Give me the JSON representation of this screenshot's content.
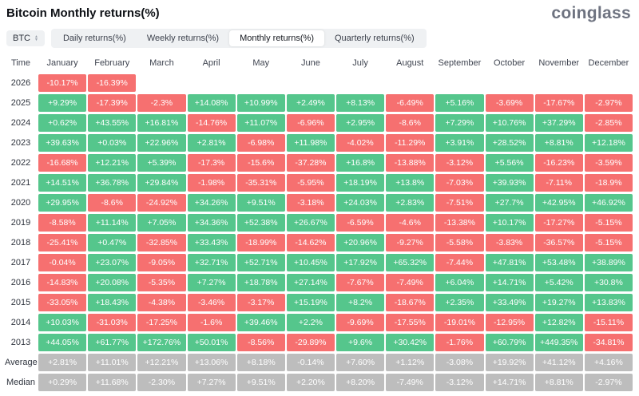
{
  "header": {
    "title": "Bitcoin Monthly returns(%)",
    "logo": "coinglass"
  },
  "controls": {
    "symbol_selector": {
      "label": "BTC"
    },
    "tabs": [
      {
        "label": "Daily returns(%)",
        "selected": false
      },
      {
        "label": "Weekly returns(%)",
        "selected": false
      },
      {
        "label": "Monthly returns(%)",
        "selected": true
      },
      {
        "label": "Quarterly returns(%)",
        "selected": false
      }
    ]
  },
  "chart_data": {
    "type": "heatmap",
    "title": "Bitcoin Monthly returns(%)",
    "row_header": "Time",
    "columns": [
      "January",
      "February",
      "March",
      "April",
      "May",
      "June",
      "July",
      "August",
      "September",
      "October",
      "November",
      "December"
    ],
    "colors": {
      "positive": "#55C68C",
      "negative": "#F67070",
      "summary": "#BDBDBD",
      "empty": "#FFFFFF"
    },
    "rows": [
      {
        "label": "2026",
        "kind": "year",
        "values": [
          "-10.17%",
          "-16.39%",
          "",
          "",
          "",
          "",
          "",
          "",
          "",
          "",
          "",
          ""
        ]
      },
      {
        "label": "2025",
        "kind": "year",
        "values": [
          "+9.29%",
          "-17.39%",
          "-2.3%",
          "+14.08%",
          "+10.99%",
          "+2.49%",
          "+8.13%",
          "-6.49%",
          "+5.16%",
          "-3.69%",
          "-17.67%",
          "-2.97%"
        ]
      },
      {
        "label": "2024",
        "kind": "year",
        "values": [
          "+0.62%",
          "+43.55%",
          "+16.81%",
          "-14.76%",
          "+11.07%",
          "-6.96%",
          "+2.95%",
          "-8.6%",
          "+7.29%",
          "+10.76%",
          "+37.29%",
          "-2.85%"
        ]
      },
      {
        "label": "2023",
        "kind": "year",
        "values": [
          "+39.63%",
          "+0.03%",
          "+22.96%",
          "+2.81%",
          "-6.98%",
          "+11.98%",
          "-4.02%",
          "-11.29%",
          "+3.91%",
          "+28.52%",
          "+8.81%",
          "+12.18%"
        ]
      },
      {
        "label": "2022",
        "kind": "year",
        "values": [
          "-16.68%",
          "+12.21%",
          "+5.39%",
          "-17.3%",
          "-15.6%",
          "-37.28%",
          "+16.8%",
          "-13.88%",
          "-3.12%",
          "+5.56%",
          "-16.23%",
          "-3.59%"
        ]
      },
      {
        "label": "2021",
        "kind": "year",
        "values": [
          "+14.51%",
          "+36.78%",
          "+29.84%",
          "-1.98%",
          "-35.31%",
          "-5.95%",
          "+18.19%",
          "+13.8%",
          "-7.03%",
          "+39.93%",
          "-7.11%",
          "-18.9%"
        ]
      },
      {
        "label": "2020",
        "kind": "year",
        "values": [
          "+29.95%",
          "-8.6%",
          "-24.92%",
          "+34.26%",
          "+9.51%",
          "-3.18%",
          "+24.03%",
          "+2.83%",
          "-7.51%",
          "+27.7%",
          "+42.95%",
          "+46.92%"
        ]
      },
      {
        "label": "2019",
        "kind": "year",
        "values": [
          "-8.58%",
          "+11.14%",
          "+7.05%",
          "+34.36%",
          "+52.38%",
          "+26.67%",
          "-6.59%",
          "-4.6%",
          "-13.38%",
          "+10.17%",
          "-17.27%",
          "-5.15%"
        ]
      },
      {
        "label": "2018",
        "kind": "year",
        "values": [
          "-25.41%",
          "+0.47%",
          "-32.85%",
          "+33.43%",
          "-18.99%",
          "-14.62%",
          "+20.96%",
          "-9.27%",
          "-5.58%",
          "-3.83%",
          "-36.57%",
          "-5.15%"
        ]
      },
      {
        "label": "2017",
        "kind": "year",
        "values": [
          "-0.04%",
          "+23.07%",
          "-9.05%",
          "+32.71%",
          "+52.71%",
          "+10.45%",
          "+17.92%",
          "+65.32%",
          "-7.44%",
          "+47.81%",
          "+53.48%",
          "+38.89%"
        ]
      },
      {
        "label": "2016",
        "kind": "year",
        "values": [
          "-14.83%",
          "+20.08%",
          "-5.35%",
          "+7.27%",
          "+18.78%",
          "+27.14%",
          "-7.67%",
          "-7.49%",
          "+6.04%",
          "+14.71%",
          "+5.42%",
          "+30.8%"
        ]
      },
      {
        "label": "2015",
        "kind": "year",
        "values": [
          "-33.05%",
          "+18.43%",
          "-4.38%",
          "-3.46%",
          "-3.17%",
          "+15.19%",
          "+8.2%",
          "-18.67%",
          "+2.35%",
          "+33.49%",
          "+19.27%",
          "+13.83%"
        ]
      },
      {
        "label": "2014",
        "kind": "year",
        "values": [
          "+10.03%",
          "-31.03%",
          "-17.25%",
          "-1.6%",
          "+39.46%",
          "+2.2%",
          "-9.69%",
          "-17.55%",
          "-19.01%",
          "-12.95%",
          "+12.82%",
          "-15.11%"
        ]
      },
      {
        "label": "2013",
        "kind": "year",
        "values": [
          "+44.05%",
          "+61.77%",
          "+172.76%",
          "+50.01%",
          "-8.56%",
          "-29.89%",
          "+9.6%",
          "+30.42%",
          "-1.76%",
          "+60.79%",
          "+449.35%",
          "-34.81%"
        ]
      },
      {
        "label": "Average",
        "kind": "summary",
        "values": [
          "+2.81%",
          "+11.01%",
          "+12.21%",
          "+13.06%",
          "+8.18%",
          "-0.14%",
          "+7.60%",
          "+1.12%",
          "-3.08%",
          "+19.92%",
          "+41.12%",
          "+4.16%"
        ]
      },
      {
        "label": "Median",
        "kind": "summary",
        "values": [
          "+0.29%",
          "+11.68%",
          "-2.30%",
          "+7.27%",
          "+9.51%",
          "+2.20%",
          "+8.20%",
          "-7.49%",
          "-3.12%",
          "+14.71%",
          "+8.81%",
          "-2.97%"
        ]
      }
    ]
  }
}
